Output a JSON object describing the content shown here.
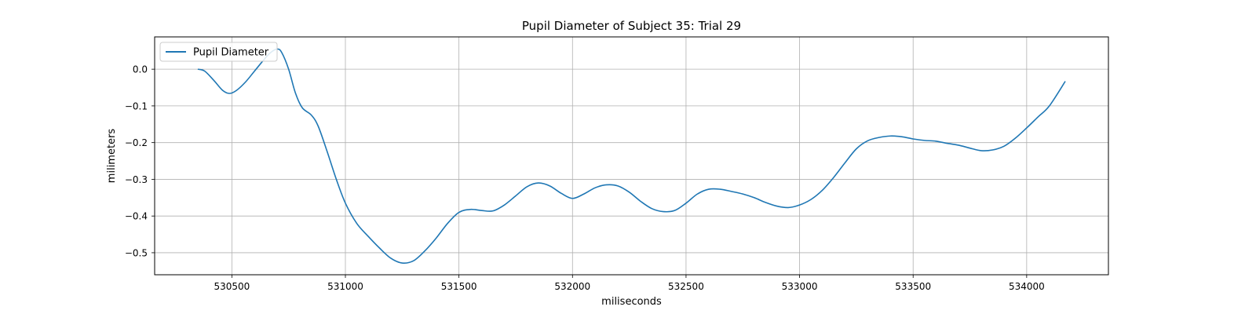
{
  "chart_data": {
    "type": "line",
    "title": "Pupil Diameter of Subject 35: Trial 29",
    "xlabel": "miliseconds",
    "ylabel": "milimeters",
    "xlim": [
      530160,
      534360
    ],
    "ylim": [
      -0.56,
      0.088
    ],
    "xticks": [
      530500,
      531000,
      531500,
      532000,
      532500,
      533000,
      533500,
      534000
    ],
    "yticks": [
      0.0,
      -0.1,
      -0.2,
      -0.3,
      -0.4,
      -0.5
    ],
    "ytick_labels": [
      "0.0",
      "−0.1",
      "−0.2",
      "−0.3",
      "−0.4",
      "−0.5"
    ],
    "grid": true,
    "legend": {
      "position": "top-left",
      "entries": [
        "Pupil Diameter"
      ]
    },
    "series": [
      {
        "name": "Pupil Diameter",
        "color": "#1f77b4",
        "x": [
          530350,
          530380,
          530420,
          530460,
          530490,
          530520,
          530560,
          530600,
          530640,
          530670,
          530700,
          530720,
          530750,
          530780,
          530810,
          530850,
          530880,
          530920,
          530960,
          531000,
          531050,
          531100,
          531150,
          531200,
          531250,
          531300,
          531350,
          531400,
          531450,
          531500,
          531550,
          531600,
          531650,
          531700,
          531750,
          531800,
          531850,
          531900,
          531950,
          532000,
          532050,
          532100,
          532150,
          532200,
          532250,
          532300,
          532350,
          532400,
          532450,
          532500,
          532550,
          532600,
          532650,
          532700,
          532750,
          532800,
          532850,
          532900,
          532950,
          533000,
          533050,
          533100,
          533150,
          533200,
          533250,
          533300,
          533350,
          533400,
          533450,
          533500,
          533550,
          533600,
          533650,
          533700,
          533750,
          533800,
          533850,
          533900,
          533950,
          534000,
          534050,
          534100,
          534170
        ],
        "y": [
          0.0,
          -0.005,
          -0.03,
          -0.058,
          -0.066,
          -0.058,
          -0.035,
          -0.005,
          0.025,
          0.045,
          0.055,
          0.045,
          0.0,
          -0.065,
          -0.105,
          -0.125,
          -0.155,
          -0.225,
          -0.3,
          -0.365,
          -0.42,
          -0.455,
          -0.487,
          -0.515,
          -0.528,
          -0.522,
          -0.495,
          -0.46,
          -0.42,
          -0.39,
          -0.382,
          -0.385,
          -0.386,
          -0.37,
          -0.345,
          -0.32,
          -0.31,
          -0.318,
          -0.338,
          -0.352,
          -0.34,
          -0.323,
          -0.315,
          -0.318,
          -0.335,
          -0.36,
          -0.38,
          -0.388,
          -0.385,
          -0.365,
          -0.34,
          -0.327,
          -0.327,
          -0.333,
          -0.34,
          -0.35,
          -0.363,
          -0.373,
          -0.377,
          -0.37,
          -0.355,
          -0.33,
          -0.295,
          -0.255,
          -0.217,
          -0.195,
          -0.186,
          -0.182,
          -0.184,
          -0.19,
          -0.194,
          -0.196,
          -0.202,
          -0.207,
          -0.215,
          -0.222,
          -0.22,
          -0.21,
          -0.188,
          -0.16,
          -0.13,
          -0.1,
          -0.033
        ]
      }
    ]
  }
}
